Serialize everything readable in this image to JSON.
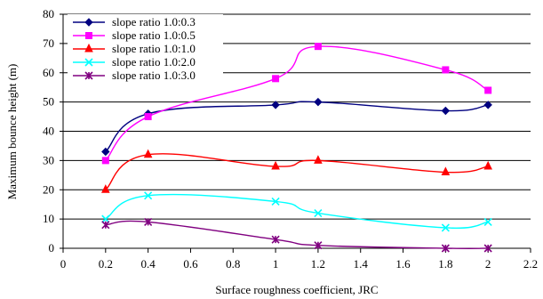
{
  "chart_data": {
    "type": "line",
    "xlabel": "Surface roughness coefficient, JRC",
    "ylabel": "Maximum bounce height (m)",
    "xlim": [
      0,
      2.2
    ],
    "ylim": [
      0,
      80
    ],
    "xticks": [
      "0",
      "0.2",
      "0.4",
      "0.6",
      "0.8",
      "1",
      "1.2",
      "1.4",
      "1.6",
      "1.8",
      "2",
      "2.2"
    ],
    "yticks": [
      "0",
      "10",
      "20",
      "30",
      "40",
      "50",
      "60",
      "70",
      "80"
    ],
    "grid": "horizontal",
    "legend_position": "top-left",
    "series": [
      {
        "name": "slope ratio 1.0:0.3",
        "color": "#000080",
        "marker": "diamond",
        "x": [
          0.2,
          0.4,
          1.0,
          1.2,
          1.8,
          2.0
        ],
        "y": [
          33,
          46,
          49,
          50,
          47,
          49
        ]
      },
      {
        "name": "slope ratio 1.0:0.5",
        "color": "#FF00FF",
        "marker": "square",
        "x": [
          0.2,
          0.4,
          1.0,
          1.2,
          1.8,
          2.0
        ],
        "y": [
          30,
          45,
          58,
          69,
          61,
          54
        ]
      },
      {
        "name": "slope ratio 1.0:1.0",
        "color": "#FF0000",
        "marker": "triangle",
        "x": [
          0.2,
          0.4,
          1.0,
          1.2,
          1.8,
          2.0
        ],
        "y": [
          20,
          32,
          28,
          30,
          26,
          28
        ]
      },
      {
        "name": "slope ratio 1.0:2.0",
        "color": "#00FFFF",
        "marker": "x",
        "x": [
          0.2,
          0.4,
          1.0,
          1.2,
          1.8,
          2.0
        ],
        "y": [
          10,
          18,
          16,
          12,
          7,
          9
        ]
      },
      {
        "name": "slope ratio 1.0:3.0",
        "color": "#800080",
        "marker": "star",
        "x": [
          0.2,
          0.4,
          1.0,
          1.2,
          1.8,
          2.0
        ],
        "y": [
          8,
          9,
          3,
          1,
          0,
          0
        ]
      }
    ]
  }
}
